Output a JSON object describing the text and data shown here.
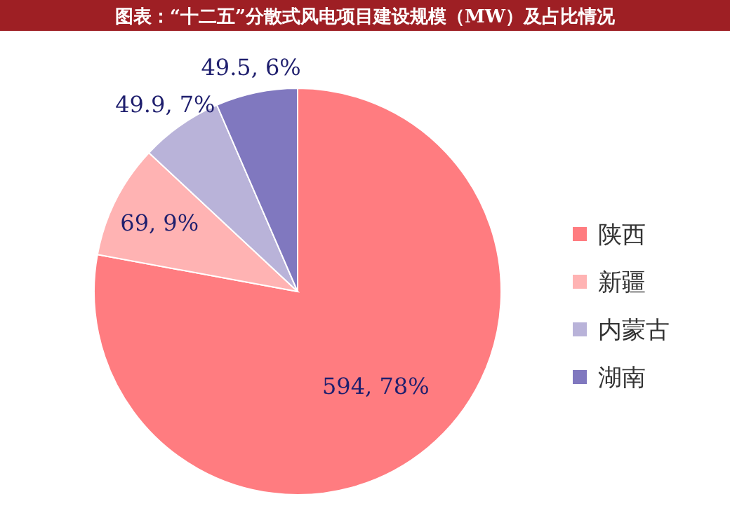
{
  "chart_data": {
    "type": "pie",
    "title": "图表：“十二五”分散式风电项目建设规模（MW）及占比情况",
    "categories": [
      "陕西",
      "新疆",
      "内蒙古",
      "湖南"
    ],
    "values": [
      594,
      69,
      49.9,
      49.5
    ],
    "colors": [
      "#ff7c80",
      "#ffb3b3",
      "#b9b3d9",
      "#8078bf"
    ],
    "value_labels": [
      "594, 78%",
      "69, 9%",
      "49.9, 7%",
      "49.5, 6%"
    ],
    "legend": "right"
  }
}
